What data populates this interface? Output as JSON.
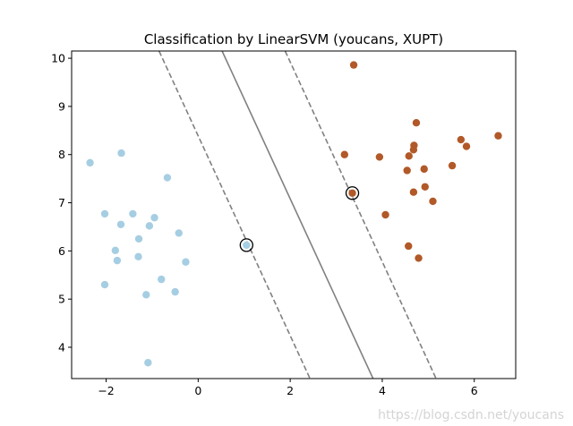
{
  "chart_data": {
    "type": "scatter",
    "title": "Classification by LinearSVM (youcans, XUPT)",
    "xlabel": "",
    "ylabel": "",
    "xlim": [
      -2.75,
      6.9
    ],
    "ylim": [
      3.35,
      10.15
    ],
    "xticks": [
      -2,
      0,
      2,
      4,
      6
    ],
    "yticks": [
      4,
      5,
      6,
      7,
      8,
      9,
      10
    ],
    "xtick_labels": [
      "−2",
      "0",
      "2",
      "4",
      "6"
    ],
    "ytick_labels": [
      "4",
      "5",
      "6",
      "7",
      "8",
      "9",
      "10"
    ],
    "grid": false,
    "legend": "none",
    "series": [
      {
        "color": "#a6cee3",
        "points": [
          [
            -2.35,
            7.83
          ],
          [
            -1.67,
            8.03
          ],
          [
            -2.03,
            6.77
          ],
          [
            -1.68,
            6.55
          ],
          [
            -1.42,
            6.77
          ],
          [
            -1.06,
            6.52
          ],
          [
            -0.95,
            6.69
          ],
          [
            -0.67,
            7.52
          ],
          [
            -1.8,
            6.01
          ],
          [
            -1.76,
            5.8
          ],
          [
            -1.29,
            6.25
          ],
          [
            -1.3,
            5.88
          ],
          [
            -0.42,
            6.37
          ],
          [
            -0.27,
            5.77
          ],
          [
            -2.03,
            5.3
          ],
          [
            -0.8,
            5.41
          ],
          [
            -1.13,
            5.09
          ],
          [
            -0.5,
            5.15
          ],
          [
            -1.09,
            3.68
          ],
          [
            1.05,
            6.12
          ]
        ]
      },
      {
        "color": "#b15928",
        "points": [
          [
            3.38,
            9.86
          ],
          [
            3.18,
            8.0
          ],
          [
            3.94,
            7.95
          ],
          [
            3.35,
            7.2
          ],
          [
            4.07,
            6.75
          ],
          [
            4.74,
            8.66
          ],
          [
            4.69,
            8.19
          ],
          [
            4.68,
            8.1
          ],
          [
            4.58,
            7.97
          ],
          [
            4.54,
            7.67
          ],
          [
            4.91,
            7.7
          ],
          [
            4.68,
            7.22
          ],
          [
            4.93,
            7.33
          ],
          [
            5.1,
            7.03
          ],
          [
            5.52,
            7.77
          ],
          [
            5.71,
            8.31
          ],
          [
            5.83,
            8.17
          ],
          [
            6.52,
            8.39
          ],
          [
            4.57,
            6.1
          ],
          [
            4.79,
            5.85
          ]
        ]
      }
    ],
    "support_vectors": [
      [
        1.05,
        6.12
      ],
      [
        3.35,
        7.2
      ]
    ],
    "decision_lines": [
      {
        "style": "dashed",
        "points": [
          [
            -0.85,
            10.15
          ],
          [
            2.43,
            3.35
          ]
        ]
      },
      {
        "style": "solid",
        "points": [
          [
            0.52,
            10.15
          ],
          [
            3.8,
            3.35
          ]
        ]
      },
      {
        "style": "dashed",
        "points": [
          [
            1.89,
            10.15
          ],
          [
            5.17,
            3.35
          ]
        ]
      }
    ],
    "line_color": "#808080"
  },
  "watermark": "https://blog.csdn.net/youcans"
}
